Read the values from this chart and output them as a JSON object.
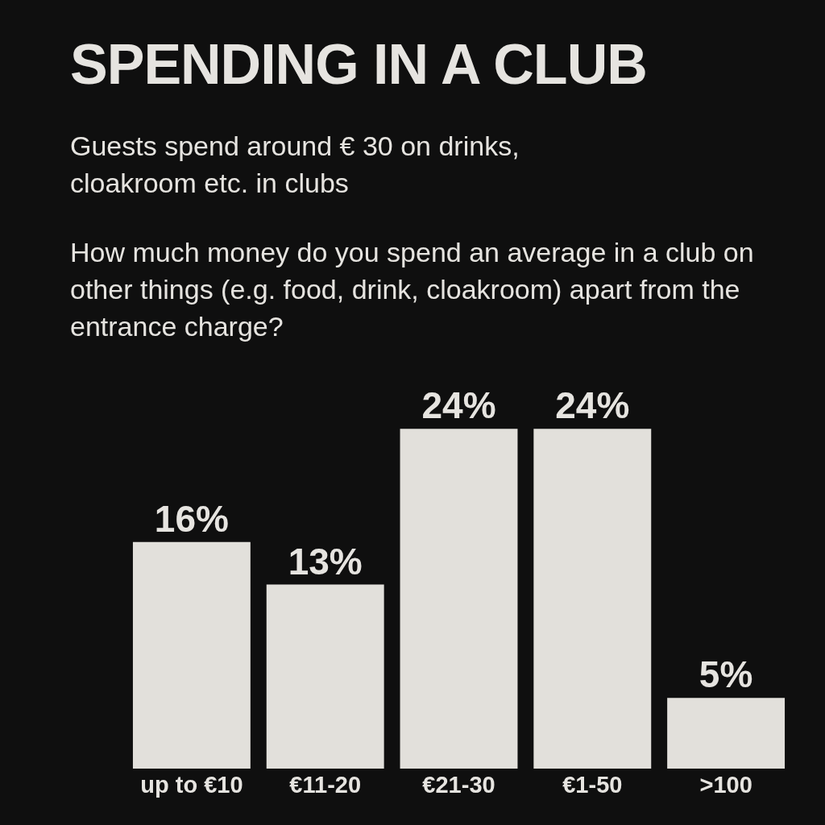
{
  "chart_data": {
    "type": "bar",
    "title": "SPENDING IN A CLUB",
    "subtitle": "Guests spend around € 30 on drinks, cloakroom etc. in clubs",
    "annotations": [
      "How much money do you spend an average in a club on other things (e.g. food, drink, cloakroom) apart from the entrance charge?"
    ],
    "categories": [
      "up to €10",
      "€11-20",
      "€21-30",
      "€1-50",
      ">100"
    ],
    "values": [
      16,
      13,
      24,
      24,
      5
    ],
    "value_labels": [
      "16%",
      "13%",
      "24%",
      "24%",
      "5%"
    ],
    "color": "#e2e0db",
    "tick_labels": "x"
  }
}
